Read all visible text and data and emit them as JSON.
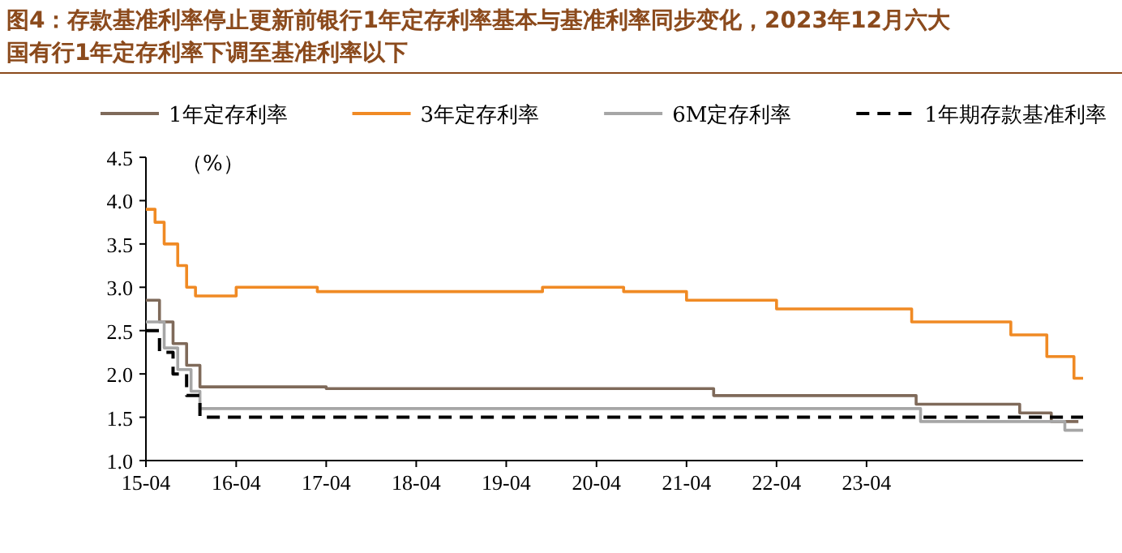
{
  "chart_data": {
    "type": "step",
    "title": "图4：存款基准利率停止更新前银行1年定存利率基本与基准利率同步变化，2023年12月六大国有行1年定存利率下调至基准利率以下",
    "ylabel": "（%）",
    "legend": "top",
    "grid": false,
    "marker": "none",
    "xlim": [
      "2015-04-01",
      "2025-08-26"
    ],
    "xticks": [
      {
        "value": "2015-04-01",
        "label": "15-04"
      },
      {
        "value": "2016-04-01",
        "label": "16-04"
      },
      {
        "value": "2017-04-01",
        "label": "17-04"
      },
      {
        "value": "2018-04-01",
        "label": "18-04"
      },
      {
        "value": "2019-04-01",
        "label": "19-04"
      },
      {
        "value": "2020-04-01",
        "label": "20-04"
      },
      {
        "value": "2021-04-01",
        "label": "21-04"
      },
      {
        "value": "2022-04-01",
        "label": "22-04"
      },
      {
        "value": "2023-04-01",
        "label": "23-04"
      }
    ],
    "ylim": [
      1.0,
      4.5
    ],
    "yticks": [
      {
        "value": 1.0,
        "label": "1.0"
      },
      1.5,
      {
        "value": 2.0,
        "label": "2.0"
      },
      2.5,
      {
        "value": 3.0,
        "label": "3.0"
      },
      3.5,
      {
        "value": 4.0,
        "label": "4.0"
      },
      4.5
    ],
    "series": [
      {
        "name": "1年定存利率",
        "color": "#7f6a5a",
        "line_style": "solid",
        "x": [
          "2015-04-01",
          "2015-05-26",
          "2015-07-20",
          "2015-09-13",
          "2015-11-06",
          "2017-04-01",
          "2018-04-01",
          "2021-07-20",
          "2023-10-19",
          "2024-12-12",
          "2025-04-19",
          "2025-08-07"
        ],
        "values": [
          2.85,
          2.6,
          2.35,
          2.1,
          1.85,
          1.83,
          1.83,
          1.75,
          1.65,
          1.55,
          1.45,
          1.45
        ]
      },
      {
        "name": "3年定存利率",
        "color": "#f08a24",
        "line_style": "solid",
        "x": [
          "2015-04-01",
          "2015-05-08",
          "2015-06-14",
          "2015-08-08",
          "2015-09-13",
          "2015-10-19",
          "2016-04-01",
          "2017-02-24",
          "2019-08-26",
          "2020-07-20",
          "2021-04-01",
          "2022-04-01",
          "2023-10-01",
          "2024-11-06",
          "2025-04-01",
          "2025-07-20",
          "2025-08-26"
        ],
        "values": [
          3.9,
          3.75,
          3.5,
          3.25,
          3.0,
          2.9,
          3.0,
          2.95,
          3.0,
          2.95,
          2.85,
          2.75,
          2.6,
          2.45,
          2.2,
          1.95,
          1.95
        ]
      },
      {
        "name": "6M定存利率",
        "color": "#a6a6a6",
        "line_style": "solid",
        "x": [
          "2015-04-01",
          "2015-06-14",
          "2015-08-08",
          "2015-10-01",
          "2015-11-06",
          "2023-11-06",
          "2025-06-13",
          "2025-08-26"
        ],
        "values": [
          2.6,
          2.3,
          2.05,
          1.8,
          1.6,
          1.45,
          1.35,
          1.35
        ]
      },
      {
        "name": "1年期存款基准利率",
        "color": "#000000",
        "line_style": "dashed",
        "x": [
          "2015-04-01",
          "2015-05-26",
          "2015-07-20",
          "2015-09-13",
          "2015-11-06",
          "2025-08-26"
        ],
        "values": [
          2.5,
          2.25,
          2.0,
          1.75,
          1.5,
          1.5
        ]
      }
    ]
  }
}
